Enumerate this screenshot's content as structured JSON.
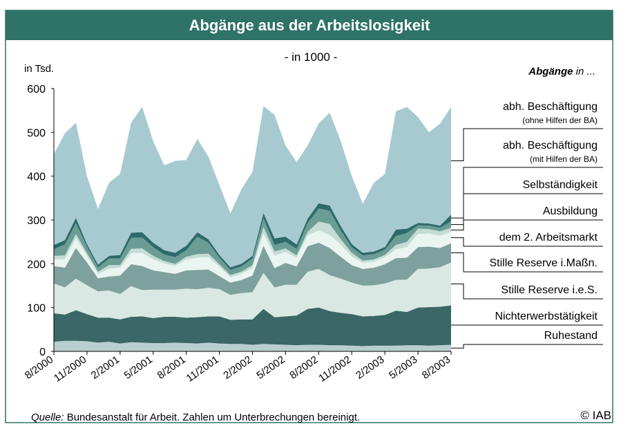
{
  "chart_data": {
    "type": "stacked_area",
    "title": "Abgänge aus der Arbeitslosigkeit",
    "subtitle": "- in 1000 -",
    "ylabel": "in Tsd.",
    "legend_title": "Abgänge",
    "legend_title_suffix": "in ...",
    "source_label": "Quelle:",
    "source": "Bundesanstalt für Arbeit. Zahlen um Unterbrechungen bereinigt.",
    "copyright": "© IAB",
    "ylim": [
      0,
      600
    ],
    "yticks": [
      0,
      100,
      200,
      300,
      400,
      500,
      600
    ],
    "categories": [
      "8/2000",
      null,
      null,
      "11/2000",
      null,
      null,
      "2/2001",
      null,
      null,
      "5/2001",
      null,
      null,
      "8/2001",
      null,
      null,
      "11/2001",
      null,
      null,
      "2/2002",
      null,
      null,
      "5/2002",
      null,
      null,
      "8/2002",
      null,
      null,
      "11/2002",
      null,
      null,
      "2/2003",
      null,
      null,
      "5/2003",
      null,
      null,
      "8/2003"
    ],
    "series": [
      {
        "name": "Ruhestand",
        "color": "#b9cfcf",
        "values": [
          22,
          24,
          24,
          23,
          20,
          22,
          18,
          21,
          20,
          19,
          19,
          20,
          19,
          18,
          20,
          18,
          17,
          17,
          15,
          17,
          16,
          15,
          14,
          15,
          15,
          14,
          14,
          13,
          12,
          13,
          13,
          13,
          14,
          14,
          13,
          14,
          15
        ]
      },
      {
        "name": "Nichterwerbstätigkeit",
        "color": "#3b6766",
        "values": [
          65,
          60,
          70,
          62,
          57,
          55,
          55,
          58,
          60,
          57,
          60,
          59,
          58,
          60,
          60,
          62,
          55,
          56,
          58,
          80,
          62,
          65,
          68,
          82,
          85,
          78,
          74,
          72,
          68,
          68,
          70,
          80,
          76,
          86,
          88,
          88,
          90
        ]
      },
      {
        "name": "Stille Reserve i.e.S.",
        "color": "#d9e8e2",
        "values": [
          68,
          62,
          72,
          66,
          60,
          62,
          58,
          70,
          60,
          65,
          62,
          62,
          66,
          64,
          65,
          62,
          57,
          60,
          62,
          82,
          68,
          72,
          70,
          85,
          88,
          82,
          78,
          72,
          70,
          70,
          72,
          70,
          74,
          88,
          88,
          90,
          98
        ]
      },
      {
        "name": "Stille Reserve i.Maßn.",
        "color": "#7fa19d",
        "values": [
          40,
          45,
          70,
          52,
          30,
          32,
          42,
          50,
          55,
          44,
          40,
          36,
          42,
          44,
          42,
          30,
          28,
          30,
          38,
          62,
          44,
          50,
          42,
          58,
          60,
          62,
          50,
          40,
          38,
          40,
          44,
          50,
          50,
          50,
          50,
          44,
          44
        ]
      },
      {
        "name": "dem 2. Arbeitsmarkt",
        "color": "#eaf4f0",
        "values": [
          15,
          20,
          22,
          15,
          10,
          18,
          18,
          25,
          30,
          25,
          20,
          18,
          25,
          28,
          28,
          22,
          12,
          14,
          18,
          28,
          28,
          25,
          20,
          25,
          28,
          30,
          28,
          20,
          14,
          14,
          16,
          20,
          24,
          30,
          30,
          28,
          25
        ]
      },
      {
        "name": "Ausbildung",
        "color": "#c5dcd4",
        "values": [
          8,
          8,
          10,
          6,
          5,
          8,
          6,
          10,
          10,
          8,
          5,
          5,
          6,
          8,
          8,
          5,
          5,
          5,
          6,
          15,
          10,
          8,
          5,
          8,
          20,
          25,
          12,
          8,
          5,
          5,
          5,
          10,
          12,
          12,
          10,
          10,
          10
        ]
      },
      {
        "name": "Selbständigkeit",
        "color": "#6b9d95",
        "values": [
          15,
          25,
          25,
          15,
          10,
          15,
          15,
          25,
          25,
          20,
          15,
          15,
          15,
          40,
          25,
          15,
          12,
          12,
          15,
          20,
          15,
          15,
          15,
          20,
          30,
          30,
          20,
          12,
          12,
          12,
          12,
          20,
          20,
          8,
          8,
          8,
          15
        ]
      },
      {
        "name": "abh. Beschäftigung",
        "name_note": "(mit Hilfen der BA)",
        "color": "#2d6a6a",
        "values": [
          10,
          10,
          12,
          6,
          6,
          6,
          8,
          12,
          12,
          10,
          10,
          10,
          10,
          10,
          8,
          6,
          6,
          6,
          6,
          12,
          15,
          12,
          10,
          10,
          12,
          12,
          10,
          8,
          6,
          6,
          6,
          15,
          10,
          5,
          5,
          5,
          15
        ]
      },
      {
        "name": "abh. Beschäftigung",
        "name_note": "(ohne Hilfen der BA)",
        "color": "#a7cad1",
        "values": [
          207,
          244,
          217,
          155,
          127,
          167,
          185,
          251,
          286,
          232,
          194,
          210,
          196,
          213,
          189,
          160,
          123,
          170,
          192,
          244,
          282,
          208,
          188,
          167,
          182,
          212,
          194,
          155,
          112,
          157,
          167,
          270,
          278,
          242,
          208,
          233,
          246
        ]
      }
    ]
  }
}
